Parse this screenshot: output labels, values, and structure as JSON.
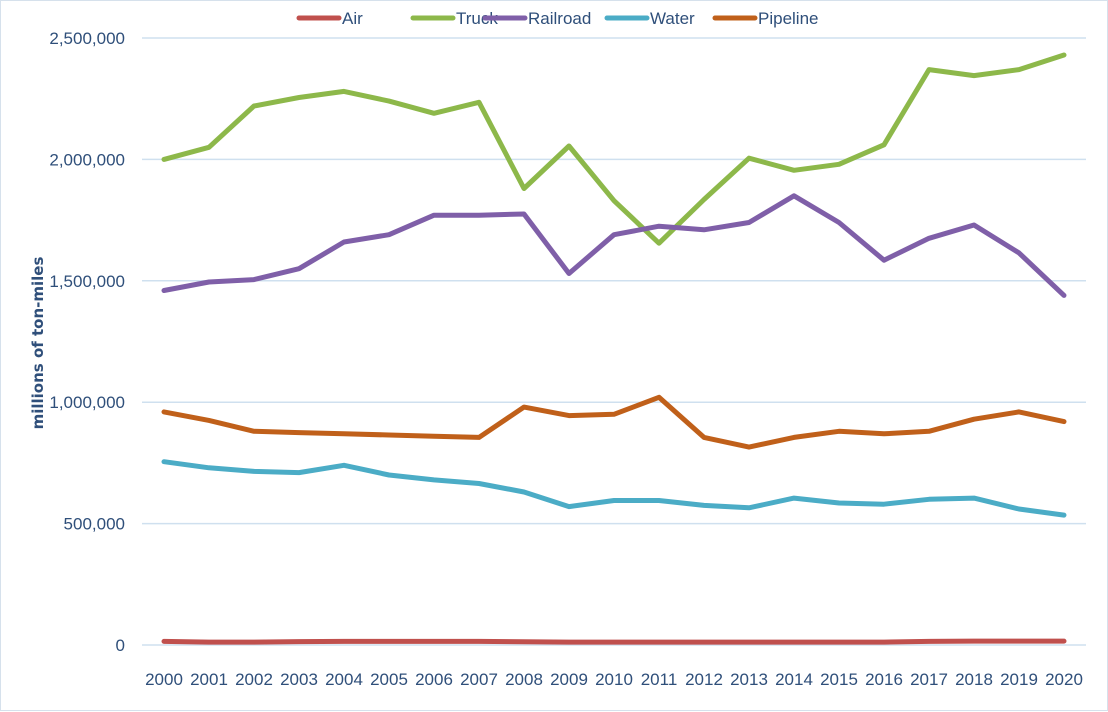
{
  "chart_data": {
    "type": "line",
    "title": "",
    "xlabel": "",
    "ylabel": "millions of ton-miles",
    "ylim": [
      0,
      2500000
    ],
    "yticks": [
      0,
      500000,
      1000000,
      1500000,
      2000000,
      2500000
    ],
    "ytick_labels": [
      "0",
      "500,000",
      "1,000,000",
      "1,500,000",
      "2,000,000",
      "2,500,000"
    ],
    "grid": true,
    "legend_position": "top",
    "categories": [
      "2000",
      "2001",
      "2002",
      "2003",
      "2004",
      "2005",
      "2006",
      "2007",
      "2008",
      "2009",
      "2010",
      "2011",
      "2012",
      "2013",
      "2014",
      "2015",
      "2016",
      "2017",
      "2018",
      "2019",
      "2020"
    ],
    "series": [
      {
        "name": "Air",
        "color": "#c0504d",
        "values": [
          15000,
          12000,
          12000,
          14000,
          15000,
          15000,
          15000,
          15000,
          13000,
          12000,
          12000,
          12000,
          12000,
          12000,
          12000,
          12000,
          12000,
          15000,
          16000,
          16000,
          16000
        ]
      },
      {
        "name": "Truck",
        "color": "#8db84a",
        "values": [
          2000000,
          2050000,
          2220000,
          2255000,
          2280000,
          2240000,
          2190000,
          2235000,
          1880000,
          2055000,
          1830000,
          1655000,
          1835000,
          2005000,
          1955000,
          1980000,
          2060000,
          2370000,
          2345000,
          2370000,
          2430000
        ]
      },
      {
        "name": "Railroad",
        "color": "#7f5fa8",
        "values": [
          1460000,
          1495000,
          1505000,
          1550000,
          1660000,
          1690000,
          1770000,
          1770000,
          1775000,
          1530000,
          1690000,
          1725000,
          1710000,
          1740000,
          1850000,
          1740000,
          1585000,
          1675000,
          1730000,
          1615000,
          1440000
        ]
      },
      {
        "name": "Water",
        "color": "#4bacc6",
        "values": [
          755000,
          730000,
          715000,
          710000,
          740000,
          700000,
          680000,
          665000,
          630000,
          570000,
          595000,
          595000,
          575000,
          565000,
          605000,
          585000,
          580000,
          600000,
          605000,
          560000,
          535000
        ]
      },
      {
        "name": "Pipeline",
        "color": "#c0601a",
        "values": [
          960000,
          925000,
          880000,
          875000,
          870000,
          865000,
          860000,
          855000,
          980000,
          945000,
          950000,
          1020000,
          855000,
          815000,
          855000,
          880000,
          870000,
          880000,
          930000,
          960000,
          920000
        ]
      }
    ]
  }
}
